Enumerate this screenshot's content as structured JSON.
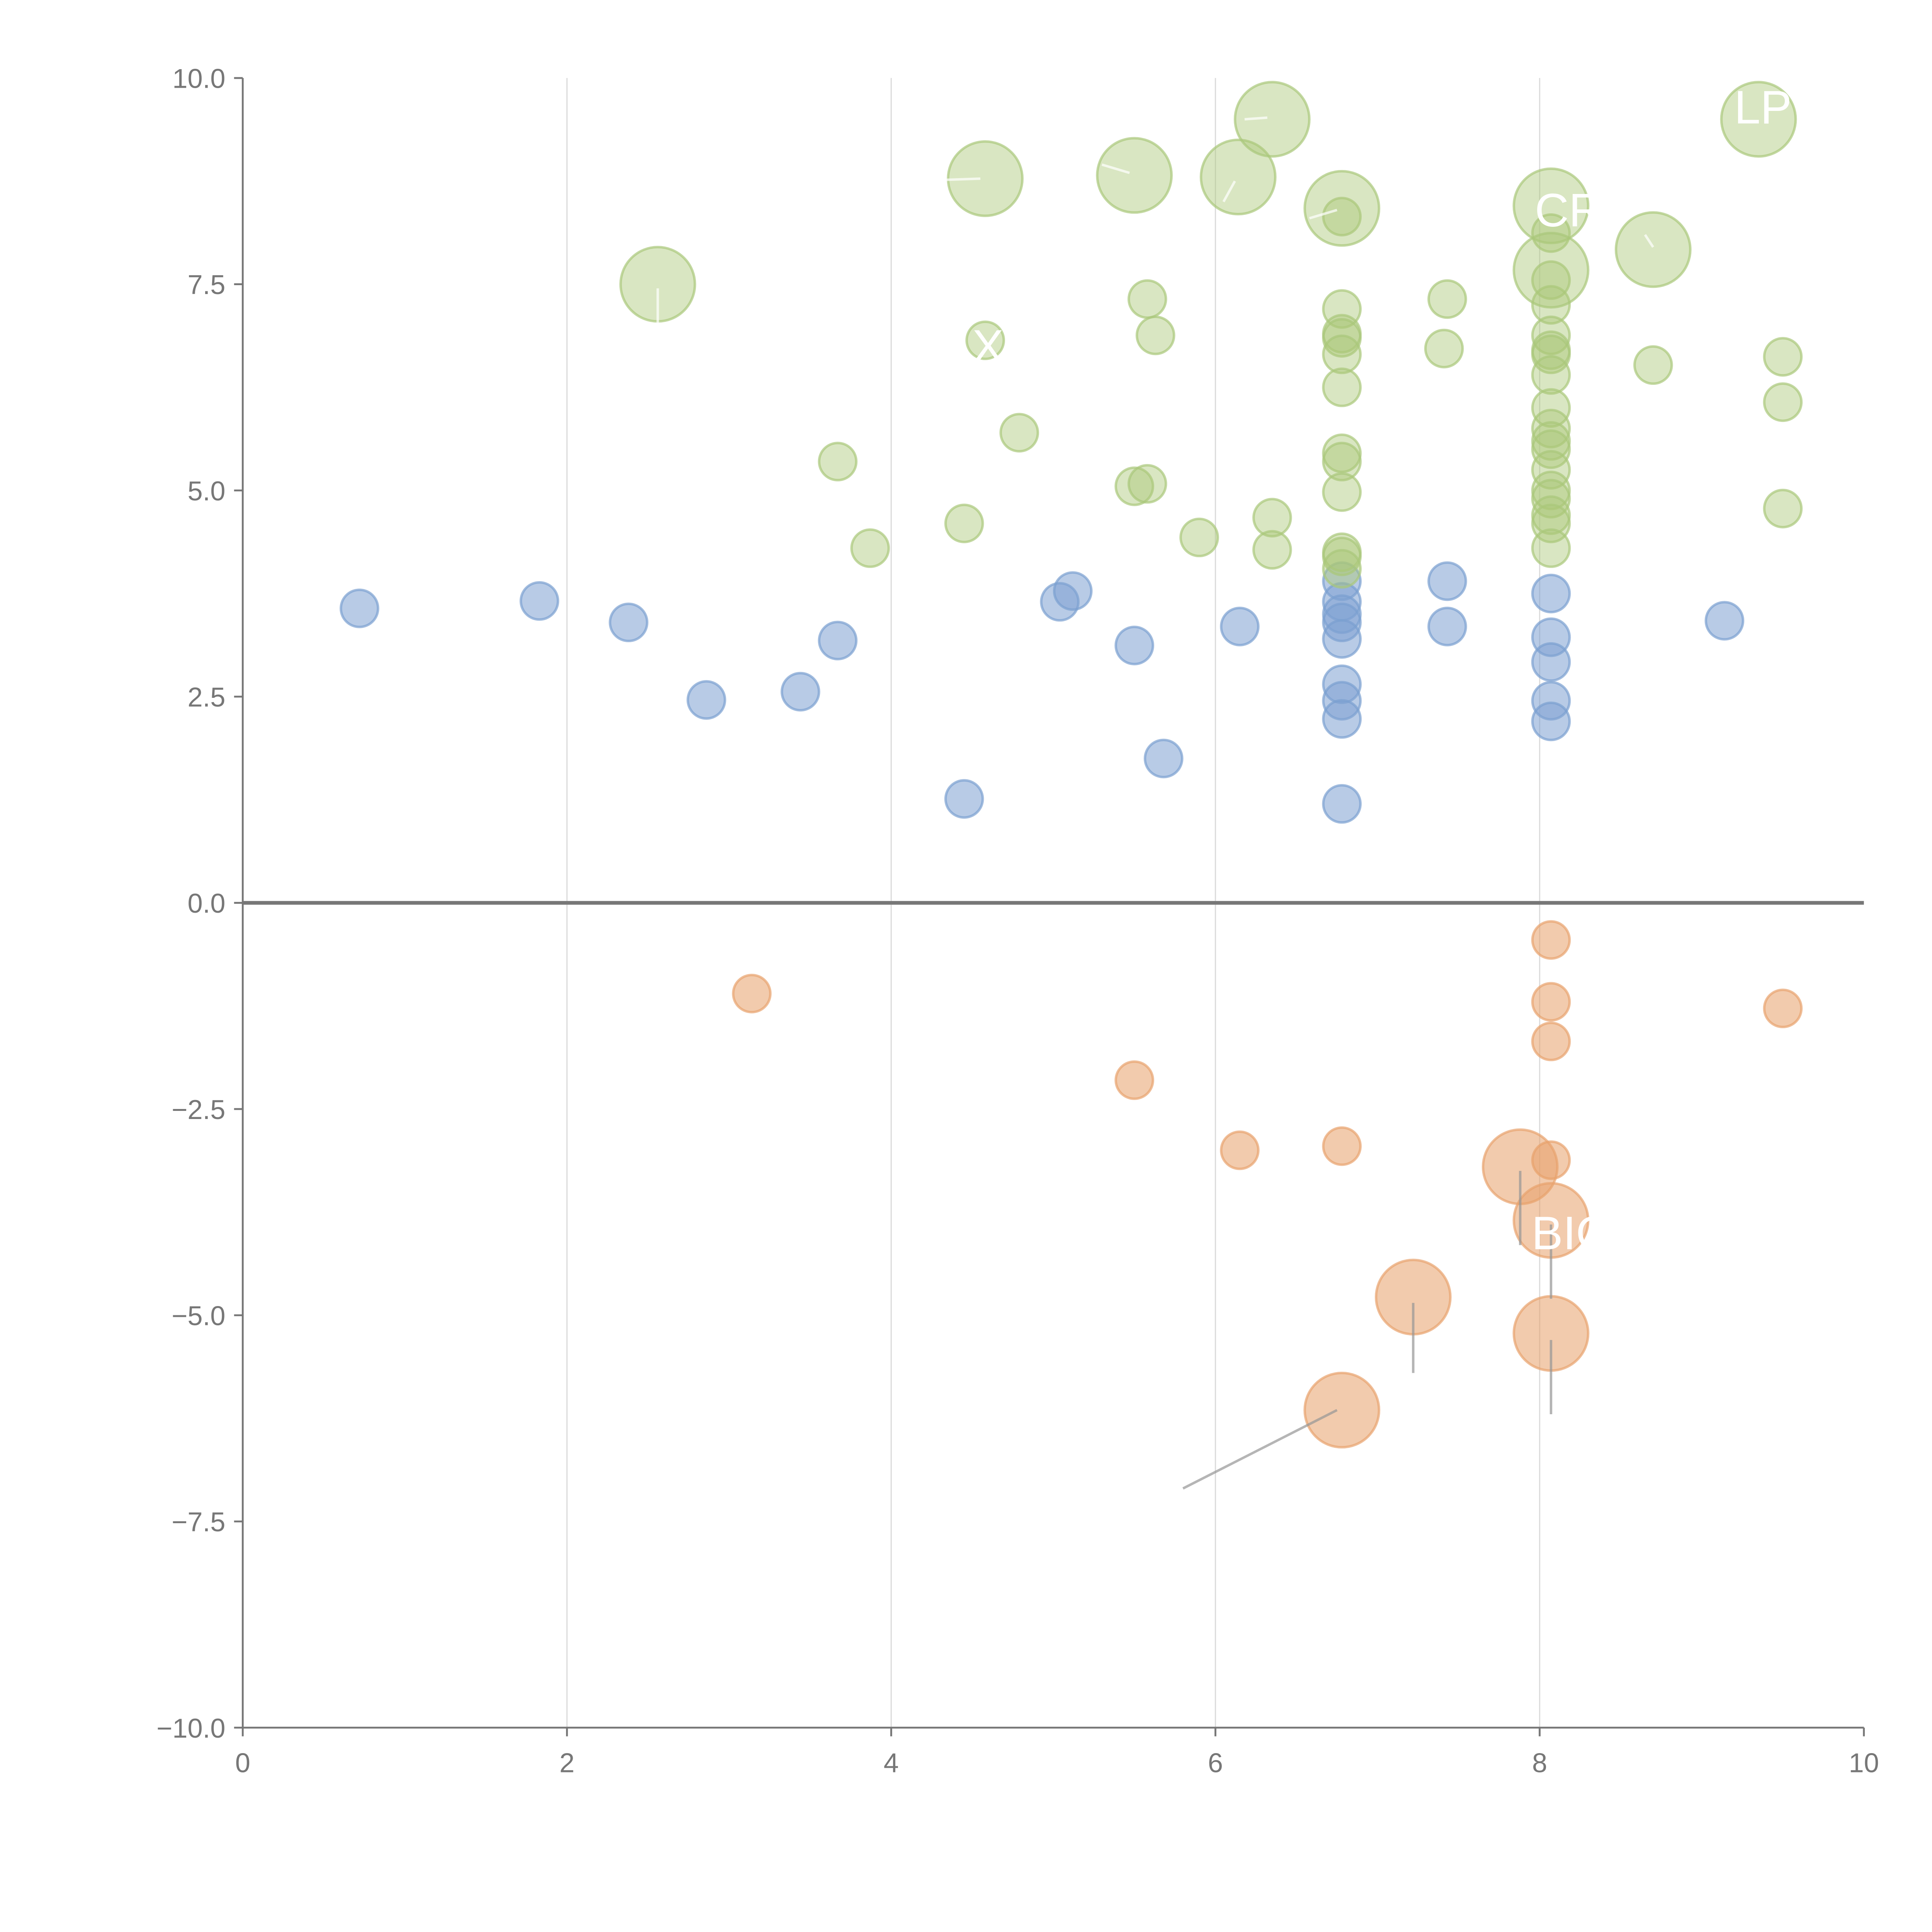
{
  "chart_data": {
    "type": "scatter",
    "title": "",
    "xlabel": "",
    "ylabel": "",
    "xlim": [
      0,
      10
    ],
    "ylim": [
      -10,
      10
    ],
    "grid": "vertical only",
    "x_ticks": [
      "0",
      "2",
      "4",
      "6",
      "8",
      "10"
    ],
    "y_ticks": [
      "10.0",
      "7.5",
      "5.0",
      "2.5",
      "0.0",
      "−2.5",
      "−5.0",
      "−7.5",
      "−10.0"
    ],
    "colors": {
      "blue": "#7b9fd0",
      "green": "#a9c77a",
      "orange": "#e8a36e"
    },
    "series": [
      {
        "name": "blue",
        "points": [
          [
            0.72,
            3.57,
            1
          ],
          [
            1.83,
            3.66,
            1
          ],
          [
            2.38,
            3.4,
            1
          ],
          [
            2.86,
            2.46,
            1
          ],
          [
            3.44,
            2.56,
            1
          ],
          [
            3.67,
            3.18,
            1
          ],
          [
            4.45,
            1.26,
            1
          ],
          [
            5.04,
            3.65,
            1
          ],
          [
            5.12,
            3.78,
            1
          ],
          [
            5.5,
            3.12,
            1
          ],
          [
            5.68,
            1.75,
            1
          ],
          [
            6.15,
            3.35,
            1
          ],
          [
            6.78,
            3.9,
            1
          ],
          [
            6.78,
            3.65,
            1
          ],
          [
            6.78,
            3.5,
            1
          ],
          [
            6.78,
            3.4,
            1
          ],
          [
            6.78,
            3.2,
            1
          ],
          [
            6.78,
            2.65,
            1
          ],
          [
            6.78,
            2.45,
            1
          ],
          [
            6.78,
            2.23,
            1
          ],
          [
            6.78,
            1.2,
            1
          ],
          [
            7.43,
            3.9,
            1
          ],
          [
            7.43,
            3.35,
            1
          ],
          [
            8.07,
            3.75,
            1
          ],
          [
            8.07,
            3.22,
            1
          ],
          [
            8.07,
            2.92,
            1
          ],
          [
            8.07,
            2.45,
            1
          ],
          [
            8.07,
            2.2,
            1
          ],
          [
            9.14,
            3.42,
            1
          ]
        ]
      },
      {
        "name": "green",
        "points": [
          [
            3.67,
            5.35,
            1
          ],
          [
            3.87,
            4.3,
            1
          ],
          [
            4.45,
            4.6,
            1
          ],
          [
            4.58,
            6.82,
            1
          ],
          [
            4.79,
            5.7,
            1
          ],
          [
            5.5,
            5.05,
            1
          ],
          [
            5.58,
            5.08,
            1
          ],
          [
            5.58,
            7.32,
            1
          ],
          [
            5.63,
            6.88,
            1
          ],
          [
            5.9,
            4.43,
            1
          ],
          [
            6.35,
            4.67,
            1
          ],
          [
            6.35,
            4.28,
            1
          ],
          [
            6.78,
            8.32,
            1
          ],
          [
            6.78,
            7.2,
            1
          ],
          [
            6.78,
            6.9,
            1
          ],
          [
            6.78,
            6.85,
            1
          ],
          [
            6.78,
            6.65,
            1
          ],
          [
            6.78,
            6.25,
            1
          ],
          [
            6.78,
            5.45,
            1
          ],
          [
            6.78,
            5.35,
            1
          ],
          [
            6.78,
            4.98,
            1
          ],
          [
            6.78,
            4.25,
            1
          ],
          [
            6.78,
            4.2,
            1
          ],
          [
            6.78,
            4.05,
            1
          ],
          [
            7.43,
            7.32,
            1
          ],
          [
            7.41,
            6.72,
            1
          ],
          [
            8.07,
            8.12,
            1
          ],
          [
            8.07,
            7.55,
            1
          ],
          [
            8.07,
            7.25,
            1
          ],
          [
            8.07,
            6.88,
            1
          ],
          [
            8.07,
            6.7,
            1
          ],
          [
            8.07,
            6.65,
            1
          ],
          [
            8.07,
            6.4,
            1
          ],
          [
            8.07,
            6.0,
            1
          ],
          [
            8.07,
            5.75,
            1
          ],
          [
            8.07,
            5.6,
            1
          ],
          [
            8.07,
            5.5,
            1
          ],
          [
            8.07,
            5.25,
            1
          ],
          [
            8.07,
            5.0,
            1
          ],
          [
            8.07,
            4.9,
            1
          ],
          [
            8.07,
            4.7,
            1
          ],
          [
            8.07,
            4.6,
            1
          ],
          [
            8.07,
            4.3,
            1
          ],
          [
            8.7,
            6.52,
            1
          ],
          [
            9.5,
            6.62,
            1
          ],
          [
            9.5,
            6.07,
            1
          ],
          [
            9.5,
            4.78,
            1
          ],
          [
            2.56,
            7.5,
            2
          ],
          [
            4.58,
            8.78,
            2
          ],
          [
            5.5,
            8.82,
            2
          ],
          [
            6.14,
            8.8,
            2
          ],
          [
            6.35,
            9.5,
            2
          ],
          [
            6.78,
            8.42,
            2
          ],
          [
            8.07,
            8.45,
            2
          ],
          [
            8.07,
            7.67,
            2
          ],
          [
            8.7,
            7.92,
            2
          ],
          [
            9.35,
            9.5,
            2
          ]
        ]
      },
      {
        "name": "orange",
        "points": [
          [
            3.14,
            -1.1,
            1
          ],
          [
            5.5,
            -2.15,
            1
          ],
          [
            6.15,
            -3.0,
            1
          ],
          [
            6.78,
            -2.95,
            1
          ],
          [
            8.07,
            -0.45,
            1
          ],
          [
            8.07,
            -1.2,
            1
          ],
          [
            8.07,
            -1.68,
            1
          ],
          [
            8.07,
            -3.12,
            1
          ],
          [
            9.5,
            -1.28,
            1
          ],
          [
            7.88,
            -3.2,
            2
          ],
          [
            8.07,
            -3.85,
            2
          ],
          [
            7.22,
            -4.78,
            2
          ],
          [
            8.07,
            -5.22,
            2
          ],
          [
            6.78,
            -6.15,
            2
          ]
        ]
      }
    ],
    "leader_lines": [
      {
        "from": [
          7.88,
          -3.25
        ],
        "to": [
          7.88,
          -4.15
        ],
        "color": "gray"
      },
      {
        "from": [
          8.07,
          -3.9
        ],
        "to": [
          8.07,
          -4.8
        ],
        "color": "gray"
      },
      {
        "from": [
          7.22,
          -4.85
        ],
        "to": [
          7.22,
          -5.7
        ],
        "color": "gray"
      },
      {
        "from": [
          8.07,
          -5.3
        ],
        "to": [
          8.07,
          -6.2
        ],
        "color": "gray"
      },
      {
        "from": [
          6.75,
          -6.15
        ],
        "to": [
          5.8,
          -7.1
        ],
        "color": "gray"
      },
      {
        "from": [
          2.56,
          7.45
        ],
        "to": [
          2.56,
          7.0
        ],
        "color": "white"
      },
      {
        "from": [
          4.55,
          8.78
        ],
        "to": [
          4.1,
          8.75
        ],
        "color": "white"
      },
      {
        "from": [
          5.47,
          8.85
        ],
        "to": [
          5.3,
          8.95
        ],
        "color": "white"
      },
      {
        "from": [
          6.12,
          8.75
        ],
        "to": [
          6.05,
          8.5
        ],
        "color": "white"
      },
      {
        "from": [
          6.32,
          9.52
        ],
        "to": [
          6.18,
          9.5
        ],
        "color": "white"
      },
      {
        "from": [
          6.75,
          8.4
        ],
        "to": [
          6.58,
          8.3
        ],
        "color": "white"
      },
      {
        "from": [
          8.7,
          7.95
        ],
        "to": [
          8.65,
          8.1
        ],
        "color": "white"
      }
    ],
    "annotations": [
      {
        "text": "CR",
        "x": 7.97,
        "y": 8.2
      },
      {
        "text": "LP",
        "x": 9.2,
        "y": 9.45
      },
      {
        "text": "BIO",
        "x": 7.95,
        "y": -4.2
      },
      {
        "text": "X",
        "x": 4.5,
        "y": 6.55
      }
    ]
  }
}
